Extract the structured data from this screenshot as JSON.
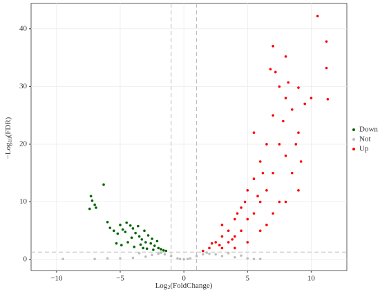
{
  "chart_data": {
    "type": "scatter",
    "x_label": {
      "base": "Log",
      "sub": "2",
      "rest": "(FoldChange)"
    },
    "y_label": {
      "base": "−Log",
      "sub": "10",
      "rest": "(FDR)"
    },
    "xlim": [
      -12,
      12.8
    ],
    "ylim": [
      -1.9,
      44.4
    ],
    "xticks": [
      {
        "value": -10,
        "label": "−10"
      },
      {
        "value": -5,
        "label": "−5"
      },
      0,
      5,
      10
    ],
    "yticks": [
      0,
      10,
      20,
      30,
      40
    ],
    "grid": true,
    "vlines": [
      -1,
      1
    ],
    "hline": 1.3,
    "legend": "right",
    "series": [
      {
        "name": "Down",
        "color": "#006400",
        "x": [
          -7.3,
          -7.2,
          -7.0,
          -6.9,
          -7.4,
          -6.3,
          -6,
          -5.8,
          -5.5,
          -5.2,
          -5,
          -4.8,
          -4.6,
          -4.5,
          -4.2,
          -4,
          -3.8,
          -3.6,
          -3.5,
          -3.3,
          -3.1,
          -3,
          -2.8,
          -2.6,
          -2.5,
          -2.3,
          -2.1,
          -2,
          -1.8,
          -1.6,
          -1.4,
          -4.9,
          -4.4,
          -3.9,
          -3.4,
          -2.9,
          -5.3,
          -4.1,
          -3.2,
          -2.4
        ],
        "values": [
          11,
          10.2,
          9.5,
          9,
          8.8,
          13,
          6.5,
          5.5,
          5,
          4.5,
          6,
          5.2,
          4.8,
          6.4,
          5.9,
          5.4,
          4.6,
          5.8,
          4,
          3.5,
          5,
          3,
          4.2,
          2.8,
          3.6,
          2.4,
          3.2,
          2,
          1.8,
          1.6,
          1.5,
          2.5,
          3,
          2.2,
          2.6,
          1.9,
          2.8,
          3.8,
          2,
          1.7
        ]
      },
      {
        "name": "Not",
        "color": "#bebebe",
        "x": [
          -6,
          -5,
          -4,
          -3,
          -2.5,
          -2,
          -1.5,
          -1,
          -0.5,
          0,
          0.5,
          1,
          1.5,
          2,
          2.5,
          3,
          4,
          5,
          5.5,
          6,
          -9.5,
          -7,
          -3.5,
          -1.8,
          1.8,
          3.5,
          4.5,
          0.3,
          -0.3
        ],
        "values": [
          0.2,
          0.2,
          0.3,
          0.5,
          0.8,
          1,
          0.9,
          0.6,
          0.2,
          0.05,
          0.2,
          0.6,
          0.9,
          1,
          0.9,
          0.6,
          0.4,
          0.2,
          0.1,
          0.1,
          0.1,
          0.1,
          1.1,
          1.2,
          1.2,
          1.1,
          0.7,
          0.1,
          0.1
        ]
      },
      {
        "name": "Up",
        "color": "#ff0000",
        "x": [
          1.5,
          2,
          2.5,
          3,
          3,
          3.5,
          3.5,
          4,
          4,
          4,
          4.5,
          4.5,
          5,
          5,
          5,
          5.5,
          5.5,
          5.5,
          6,
          6,
          6,
          6.5,
          6.5,
          6.5,
          7,
          7,
          7,
          7,
          7.5,
          7.5,
          7.5,
          8,
          8,
          8,
          8,
          8.5,
          8.5,
          9,
          9,
          9,
          9.5,
          10,
          10.5,
          11.2,
          11.2,
          11.3,
          6.8,
          7.2,
          8.2,
          3,
          2.2,
          4.8,
          6.2,
          7.8,
          8.8,
          9.2,
          5.8,
          3.8,
          2.8,
          4.2
        ],
        "values": [
          1.5,
          2,
          3,
          4,
          2,
          5,
          3,
          7,
          4,
          2,
          9,
          5,
          12,
          7,
          3,
          14,
          8,
          22,
          17,
          10,
          5,
          20,
          12,
          6,
          37,
          25,
          15,
          8,
          30,
          20,
          10,
          35.2,
          28,
          18,
          10,
          26,
          15,
          29.8,
          22,
          12,
          27,
          28,
          42.2,
          37.8,
          33.2,
          27.8,
          33,
          32.5,
          30.7,
          6,
          2.8,
          10,
          15,
          24,
          20,
          17,
          11,
          3.5,
          2.5,
          8
        ]
      }
    ]
  }
}
